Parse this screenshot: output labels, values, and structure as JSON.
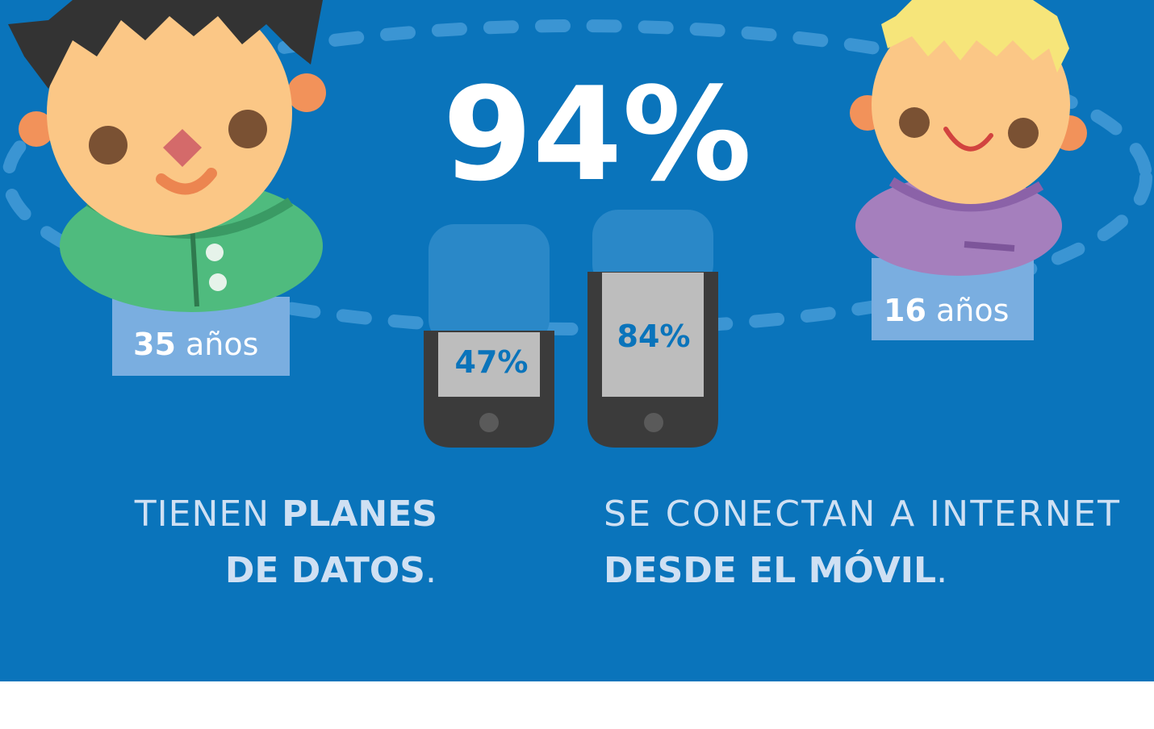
{
  "headline": "94%",
  "phones": [
    {
      "label": "47%"
    },
    {
      "label": "84%"
    }
  ],
  "people": [
    {
      "age": "35",
      "unit": "años"
    },
    {
      "age": "16",
      "unit": "años"
    }
  ],
  "captions": [
    {
      "line1": {
        "light": "TIENEN ",
        "bold": "PLANES"
      },
      "line2": {
        "bold": "DE DATOS",
        "light": "."
      }
    },
    {
      "line1": {
        "light": "SE CONECTAN A INTERNET"
      },
      "line2": {
        "bold": "DESDE EL MÓVIL",
        "light": "."
      }
    }
  ]
}
